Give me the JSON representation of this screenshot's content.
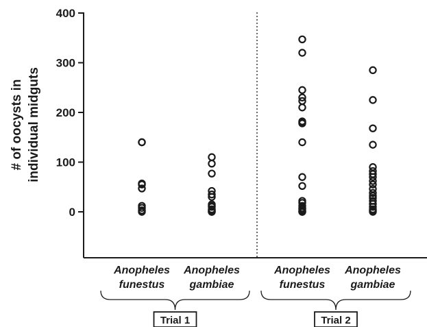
{
  "chart_data": {
    "type": "scatter",
    "title": "",
    "xlabel": "",
    "ylabel": [
      "# of oocysts in",
      "individual midguts"
    ],
    "ylim": [
      -90,
      400
    ],
    "yticks": [
      0,
      100,
      200,
      300,
      400
    ],
    "grid": false,
    "groups": [
      {
        "trial": "Trial 1",
        "categories": [
          {
            "label": [
              "Anopheles",
              "funestus"
            ],
            "values": [
              140,
              140,
              57,
              55,
              47,
              12,
              8,
              3,
              0
            ]
          },
          {
            "label": [
              "Anopheles",
              "gambiae"
            ],
            "values": [
              110,
              97,
              77,
              42,
              35,
              30,
              15,
              12,
              10,
              5,
              3,
              2,
              0,
              0
            ]
          }
        ]
      },
      {
        "trial": "Trial 2",
        "categories": [
          {
            "label": [
              "Anopheles",
              "funestus"
            ],
            "values": [
              347,
              320,
              245,
              230,
              223,
              210,
              182,
              180,
              178,
              140,
              70,
              52,
              22,
              18,
              12,
              8,
              5,
              2,
              0,
              0
            ]
          },
          {
            "label": [
              "Anopheles",
              "gambiae"
            ],
            "values": [
              285,
              225,
              168,
              135,
              90,
              82,
              76,
              70,
              62,
              55,
              46,
              38,
              32,
              28,
              22,
              16,
              10,
              5,
              2,
              0
            ]
          }
        ]
      }
    ]
  }
}
